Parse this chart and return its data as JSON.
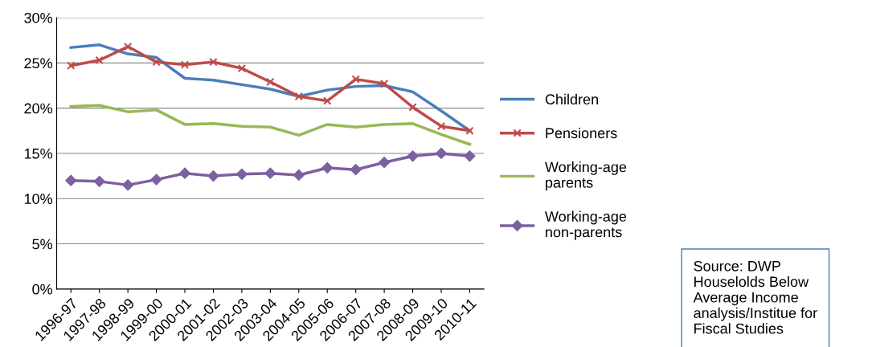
{
  "chart_data": {
    "type": "line",
    "categories": [
      "1996-97",
      "1997-98",
      "1998-99",
      "1999-00",
      "2000-01",
      "2001-02",
      "2002-03",
      "2003-04",
      "2004-05",
      "2005-06",
      "2006-07",
      "2007-08",
      "2008-09",
      "2009-10",
      "2010-11"
    ],
    "series": [
      {
        "name": "Children",
        "color": "#4a7ebb",
        "marker": "none",
        "values": [
          26.7,
          27.0,
          26.0,
          25.6,
          23.3,
          23.1,
          22.6,
          22.1,
          21.3,
          22.0,
          22.4,
          22.5,
          21.8,
          19.7,
          17.5
        ]
      },
      {
        "name": "Pensioners",
        "color": "#be4b48",
        "marker": "cross",
        "values": [
          24.7,
          25.3,
          26.8,
          25.1,
          24.8,
          25.1,
          24.4,
          22.9,
          21.3,
          20.8,
          23.2,
          22.7,
          20.1,
          18.0,
          17.5
        ]
      },
      {
        "name": "Working-age\nparents",
        "color": "#98b954",
        "marker": "none",
        "values": [
          20.2,
          20.3,
          19.6,
          19.8,
          18.2,
          18.3,
          18.0,
          17.9,
          17.0,
          18.2,
          17.9,
          18.2,
          18.3,
          17.1,
          16.0
        ]
      },
      {
        "name": "Working-age\nnon-parents",
        "color": "#7d60a0",
        "marker": "diamond",
        "values": [
          12.0,
          11.9,
          11.5,
          12.1,
          12.8,
          12.5,
          12.7,
          12.8,
          12.6,
          13.4,
          13.2,
          14.0,
          14.7,
          15.0,
          14.7
        ]
      }
    ],
    "ylim": [
      0,
      30
    ],
    "yticks": [
      {
        "value": 0,
        "label": "0%"
      },
      {
        "value": 5,
        "label": "5%"
      },
      {
        "value": 10,
        "label": "10%"
      },
      {
        "value": 15,
        "label": "15%"
      },
      {
        "value": 20,
        "label": "20%"
      },
      {
        "value": 25,
        "label": "25%"
      },
      {
        "value": 30,
        "label": "30%"
      }
    ],
    "grid": "y",
    "legend": "right",
    "annotations": [
      "Source: DWP\nHouselolds Below\nAverage Income\nanalysis/Institue for\nFiscal Studies"
    ]
  }
}
